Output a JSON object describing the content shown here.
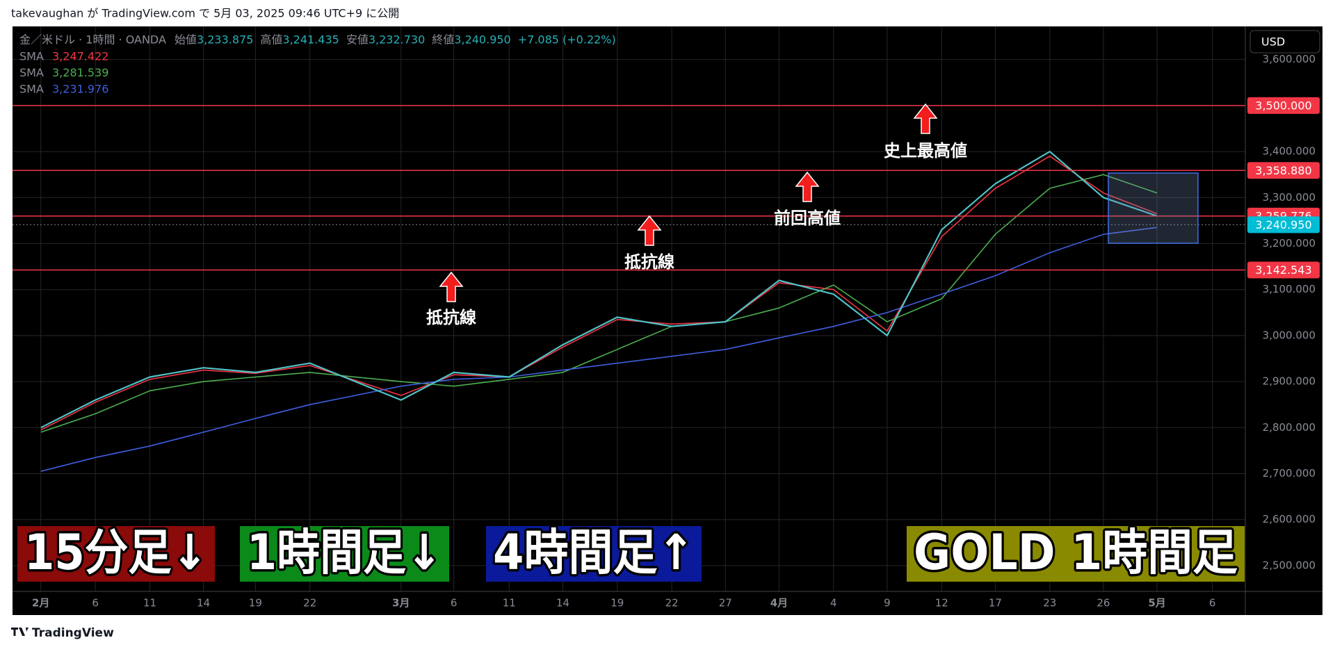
{
  "header": {
    "publisher": "takevaughan が TradingView.com で 5月 03, 2025 09:46 UTC+9 に公開"
  },
  "footer": {
    "brand": "TradingView"
  },
  "chart_data": {
    "type": "line",
    "symbol": "金／米ドル · 1時間 · OANDA",
    "ohlc": [
      {
        "label": "始値",
        "value": "3,233.875"
      },
      {
        "label": "高値",
        "value": "3,241.435"
      },
      {
        "label": "安値",
        "value": "3,232.730"
      },
      {
        "label": "終値",
        "value": "3,240.950"
      }
    ],
    "change": "+7.085 (+0.22%)",
    "currency": "USD",
    "categories": [
      "2月",
      "6",
      "11",
      "14",
      "19",
      "22",
      "3月",
      "6",
      "11",
      "14",
      "19",
      "22",
      "27",
      "4月",
      "4",
      "9",
      "12",
      "17",
      "23",
      "26",
      "5月",
      "6"
    ],
    "price": {
      "color": "#4fc3c8",
      "values": [
        2800,
        2860,
        2910,
        2930,
        2920,
        2940,
        2860,
        2920,
        2910,
        2980,
        3040,
        3020,
        3030,
        3120,
        3090,
        3000,
        3230,
        3330,
        3400,
        3300,
        3260,
        null
      ]
    },
    "series": [
      {
        "name": "SMA",
        "color": "#f23645",
        "last_value_label": "3,247.422",
        "values": [
          2795,
          2855,
          2905,
          2925,
          2918,
          2935,
          2870,
          2915,
          2910,
          2975,
          3035,
          3025,
          3030,
          3115,
          3100,
          3010,
          3215,
          3320,
          3390,
          3310,
          3265,
          null
        ]
      },
      {
        "name": "SMA",
        "color": "#4caf50",
        "last_value_label": "3,281.539",
        "values": [
          2790,
          2830,
          2880,
          2900,
          2910,
          2920,
          2900,
          2890,
          2905,
          2920,
          2970,
          3020,
          3030,
          3060,
          3110,
          3030,
          3080,
          3220,
          3320,
          3350,
          3310,
          null
        ]
      },
      {
        "name": "SMA",
        "color": "#3f5fe0",
        "last_value_label": "3,231.976",
        "values": [
          2705,
          2735,
          2760,
          2790,
          2820,
          2850,
          2890,
          2905,
          2910,
          2925,
          2940,
          2955,
          2970,
          2995,
          3020,
          3050,
          3090,
          3130,
          3180,
          3220,
          3235,
          null
        ]
      }
    ],
    "ylim": [
      2444,
      3672
    ],
    "yticks": [
      {
        "value": 2500,
        "label": "2,500.000"
      },
      {
        "value": 2600,
        "label": "2,600.000"
      },
      {
        "value": 2700,
        "label": "2,700.000"
      },
      {
        "value": 2800,
        "label": "2,800.000"
      },
      {
        "value": 2900,
        "label": "2,900.000"
      },
      {
        "value": 3000,
        "label": "3,000.000"
      },
      {
        "value": 3100,
        "label": "3,100.000"
      },
      {
        "value": 3200,
        "label": "3,200.000"
      },
      {
        "value": 3300,
        "label": "3,300.000"
      },
      {
        "value": 3400,
        "label": "3,400.000"
      },
      {
        "value": 3500,
        "label": "3,500.000"
      },
      {
        "value": 3600,
        "label": "3,600.000"
      }
    ],
    "grid": true,
    "levels": [
      {
        "value": 3500,
        "label": "3,500.000",
        "color": "#f23645"
      },
      {
        "value": 3358.88,
        "label": "3,358.880",
        "color": "#f23645"
      },
      {
        "value": 3259.776,
        "label": "3,259.776",
        "color": "#f23645"
      },
      {
        "value": 3142.543,
        "label": "3,142.543",
        "color": "#f23645"
      }
    ],
    "last_price": {
      "value": 3240.95,
      "label": "3,240.950",
      "color": "#00bcd4"
    },
    "annotations": [
      "抵抗線",
      "抵抗線",
      "前回高値",
      "史上最高値"
    ],
    "banners": [
      {
        "text": "15分足↓",
        "color": "#8b0a0a"
      },
      {
        "text": "1時間足↓",
        "color": "#0b8a1a"
      },
      {
        "text": "4時間足↑",
        "color": "#0a1a9a"
      },
      {
        "text": "GOLD 1時間足",
        "color": "#8a8a00"
      }
    ]
  }
}
